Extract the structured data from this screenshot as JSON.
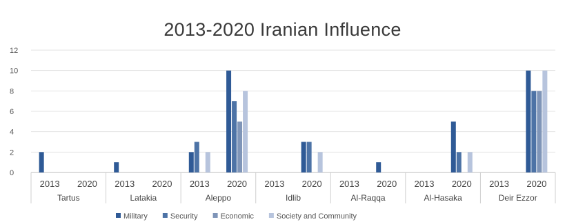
{
  "chart_data": {
    "type": "bar",
    "title": "2013-2020 Iranian Influence",
    "ylim": [
      0,
      12
    ],
    "yticks": [
      0,
      2,
      4,
      6,
      8,
      10,
      12
    ],
    "grid": true,
    "legend_position": "bottom",
    "groups": [
      {
        "name": "Tartus",
        "years": [
          "2013",
          "2020"
        ]
      },
      {
        "name": "Latakia",
        "years": [
          "2013",
          "2020"
        ]
      },
      {
        "name": "Aleppo",
        "years": [
          "2013",
          "2020"
        ]
      },
      {
        "name": "Idlib",
        "years": [
          "2013",
          "2020"
        ]
      },
      {
        "name": "Al-Raqqa",
        "years": [
          "2013",
          "2020"
        ]
      },
      {
        "name": "Al-Hasaka",
        "years": [
          "2013",
          "2020"
        ]
      },
      {
        "name": "Deir Ezzor",
        "years": [
          "2013",
          "2020"
        ]
      }
    ],
    "series": [
      {
        "name": "Military",
        "color": "#2f5a96",
        "values": [
          [
            2,
            0
          ],
          [
            1,
            0
          ],
          [
            2,
            10
          ],
          [
            0,
            3
          ],
          [
            0,
            1
          ],
          [
            0,
            5
          ],
          [
            0,
            10
          ]
        ]
      },
      {
        "name": "Security",
        "color": "#4d73a6",
        "values": [
          [
            0,
            0
          ],
          [
            0,
            0
          ],
          [
            3,
            7
          ],
          [
            0,
            3
          ],
          [
            0,
            0
          ],
          [
            0,
            2
          ],
          [
            0,
            8
          ]
        ]
      },
      {
        "name": "Economic",
        "color": "#7f95b8",
        "values": [
          [
            0,
            0
          ],
          [
            0,
            0
          ],
          [
            0,
            5
          ],
          [
            0,
            0
          ],
          [
            0,
            0
          ],
          [
            0,
            0
          ],
          [
            0,
            8
          ]
        ]
      },
      {
        "name": "Society and Community",
        "color": "#b7c4dd",
        "values": [
          [
            0,
            0
          ],
          [
            0,
            0
          ],
          [
            2,
            8
          ],
          [
            0,
            2
          ],
          [
            0,
            0
          ],
          [
            0,
            2
          ],
          [
            0,
            10
          ]
        ]
      }
    ]
  }
}
